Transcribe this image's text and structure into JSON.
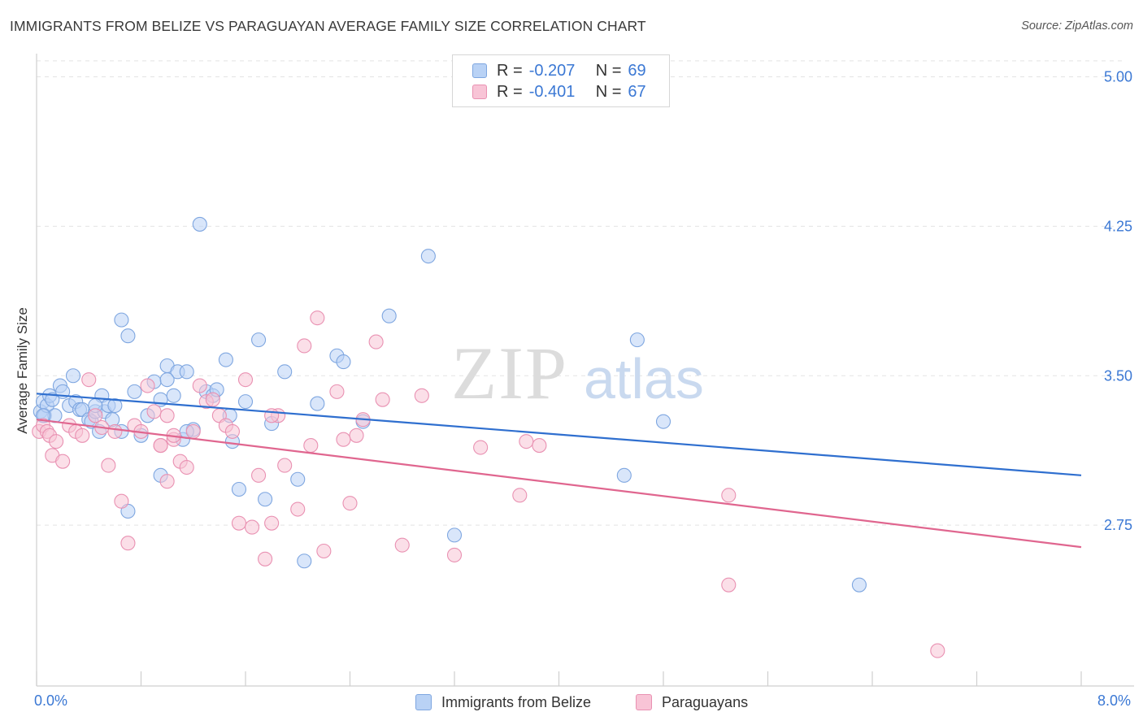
{
  "header": {
    "title": "IMMIGRANTS FROM BELIZE VS PARAGUAYAN AVERAGE FAMILY SIZE CORRELATION CHART",
    "source": "Source: ZipAtlas.com"
  },
  "watermark": {
    "zip": "ZIP",
    "atlas": "atlas"
  },
  "legend": {
    "rows": [
      {
        "r_label": "R =",
        "r_value": "-0.207",
        "n_label": "N =",
        "n_value": "69"
      },
      {
        "r_label": "R =",
        "r_value": "-0.401",
        "n_label": "N =",
        "n_value": "67"
      }
    ]
  },
  "bottom_legend": {
    "belize": "Immigrants from Belize",
    "paraguayans": "Paraguayans"
  },
  "colors": {
    "belize_fill": "#b9d2f5",
    "belize_stroke": "#7ea6e0",
    "belize_line": "#2f6fcf",
    "paraguayan_fill": "#f8c4d6",
    "paraguayan_stroke": "#e991b2",
    "paraguayan_line": "#e0668f",
    "axis_text": "#3b78d4",
    "grid": "#e4e4e4"
  },
  "chart_data": {
    "type": "scatter",
    "title": "IMMIGRANTS FROM BELIZE VS PARAGUAYAN AVERAGE FAMILY SIZE CORRELATION CHART",
    "xlabel": "",
    "ylabel": "Average Family Size",
    "xlim": [
      0,
      8
    ],
    "ylim": [
      2.0,
      5.1
    ],
    "x_tick_labels": [
      "0.0%",
      "8.0%"
    ],
    "y_ticks": [
      2.75,
      3.5,
      4.25,
      5.0
    ],
    "y_tick_labels": [
      "2.75",
      "3.50",
      "4.25",
      "5.00"
    ],
    "grid": "horizontal dashed",
    "legend_position": "top-center",
    "series": [
      {
        "name": "Immigrants from Belize",
        "r": -0.207,
        "n": 69,
        "trend": [
          [
            0.0,
            3.41
          ],
          [
            8.0,
            3.0
          ]
        ],
        "points": [
          [
            0.03,
            3.32
          ],
          [
            0.05,
            3.37
          ],
          [
            0.06,
            3.3
          ],
          [
            0.08,
            3.35
          ],
          [
            0.1,
            3.4
          ],
          [
            0.12,
            3.38
          ],
          [
            0.14,
            3.3
          ],
          [
            0.18,
            3.45
          ],
          [
            0.2,
            3.42
          ],
          [
            0.25,
            3.35
          ],
          [
            0.28,
            3.5
          ],
          [
            0.3,
            3.37
          ],
          [
            0.33,
            3.33
          ],
          [
            0.35,
            3.33
          ],
          [
            0.4,
            3.28
          ],
          [
            0.42,
            3.27
          ],
          [
            0.45,
            3.32
          ],
          [
            0.48,
            3.22
          ],
          [
            0.5,
            3.4
          ],
          [
            0.52,
            3.32
          ],
          [
            0.55,
            3.35
          ],
          [
            0.58,
            3.28
          ],
          [
            0.6,
            3.35
          ],
          [
            0.65,
            3.78
          ],
          [
            0.7,
            3.7
          ],
          [
            0.75,
            3.42
          ],
          [
            0.8,
            3.2
          ],
          [
            0.85,
            3.3
          ],
          [
            0.9,
            3.47
          ],
          [
            0.95,
            3.38
          ],
          [
            1.0,
            3.55
          ],
          [
            1.05,
            3.4
          ],
          [
            1.08,
            3.52
          ],
          [
            1.12,
            3.18
          ],
          [
            1.15,
            3.52
          ],
          [
            1.2,
            3.23
          ],
          [
            1.25,
            4.26
          ],
          [
            1.3,
            3.42
          ],
          [
            1.35,
            3.4
          ],
          [
            1.38,
            3.43
          ],
          [
            1.45,
            3.58
          ],
          [
            1.48,
            3.3
          ],
          [
            1.5,
            3.17
          ],
          [
            1.55,
            2.93
          ],
          [
            1.6,
            3.37
          ],
          [
            1.7,
            3.68
          ],
          [
            1.75,
            2.88
          ],
          [
            1.8,
            3.26
          ],
          [
            1.9,
            3.52
          ],
          [
            2.0,
            2.98
          ],
          [
            2.05,
            2.57
          ],
          [
            2.15,
            3.36
          ],
          [
            2.3,
            3.6
          ],
          [
            2.35,
            3.57
          ],
          [
            2.5,
            3.27
          ],
          [
            2.7,
            3.8
          ],
          [
            3.0,
            4.1
          ],
          [
            3.2,
            2.7
          ],
          [
            4.5,
            3.0
          ],
          [
            4.6,
            3.68
          ],
          [
            4.8,
            3.27
          ],
          [
            6.3,
            2.45
          ],
          [
            0.05,
            3.3
          ],
          [
            0.65,
            3.22
          ],
          [
            0.7,
            2.82
          ],
          [
            0.95,
            3.0
          ],
          [
            1.0,
            3.48
          ],
          [
            1.15,
            3.22
          ],
          [
            0.45,
            3.35
          ]
        ]
      },
      {
        "name": "Paraguayans",
        "r": -0.401,
        "n": 67,
        "trend": [
          [
            0.0,
            3.28
          ],
          [
            8.0,
            2.64
          ]
        ],
        "points": [
          [
            0.02,
            3.22
          ],
          [
            0.05,
            3.25
          ],
          [
            0.08,
            3.22
          ],
          [
            0.1,
            3.2
          ],
          [
            0.12,
            3.1
          ],
          [
            0.15,
            3.17
          ],
          [
            0.2,
            3.07
          ],
          [
            0.25,
            3.25
          ],
          [
            0.3,
            3.22
          ],
          [
            0.35,
            3.2
          ],
          [
            0.4,
            3.48
          ],
          [
            0.45,
            3.3
          ],
          [
            0.5,
            3.24
          ],
          [
            0.55,
            3.05
          ],
          [
            0.6,
            3.22
          ],
          [
            0.65,
            2.87
          ],
          [
            0.7,
            2.66
          ],
          [
            0.75,
            3.25
          ],
          [
            0.8,
            3.22
          ],
          [
            0.85,
            3.45
          ],
          [
            0.9,
            3.32
          ],
          [
            0.95,
            3.15
          ],
          [
            1.0,
            3.3
          ],
          [
            1.05,
            3.18
          ],
          [
            1.1,
            3.07
          ],
          [
            1.15,
            3.04
          ],
          [
            1.2,
            3.22
          ],
          [
            1.25,
            3.45
          ],
          [
            1.3,
            3.37
          ],
          [
            1.35,
            3.38
          ],
          [
            1.4,
            3.3
          ],
          [
            1.45,
            3.25
          ],
          [
            1.5,
            3.22
          ],
          [
            1.55,
            2.76
          ],
          [
            1.6,
            3.48
          ],
          [
            1.65,
            2.74
          ],
          [
            1.7,
            3.0
          ],
          [
            1.75,
            2.58
          ],
          [
            1.8,
            2.76
          ],
          [
            1.85,
            3.3
          ],
          [
            1.9,
            3.05
          ],
          [
            2.0,
            2.83
          ],
          [
            2.05,
            3.65
          ],
          [
            2.15,
            3.79
          ],
          [
            2.2,
            2.62
          ],
          [
            2.3,
            3.42
          ],
          [
            2.4,
            2.86
          ],
          [
            2.45,
            3.2
          ],
          [
            2.5,
            3.28
          ],
          [
            2.6,
            3.67
          ],
          [
            2.65,
            3.38
          ],
          [
            2.8,
            2.65
          ],
          [
            2.95,
            3.4
          ],
          [
            3.2,
            2.6
          ],
          [
            3.4,
            3.14
          ],
          [
            3.7,
            2.9
          ],
          [
            3.75,
            3.17
          ],
          [
            3.85,
            3.15
          ],
          [
            5.3,
            2.45
          ],
          [
            5.3,
            2.9
          ],
          [
            6.9,
            2.12
          ],
          [
            0.95,
            3.15
          ],
          [
            1.0,
            2.97
          ],
          [
            2.1,
            3.15
          ],
          [
            1.8,
            3.3
          ],
          [
            2.35,
            3.18
          ],
          [
            1.05,
            3.2
          ]
        ]
      }
    ]
  }
}
